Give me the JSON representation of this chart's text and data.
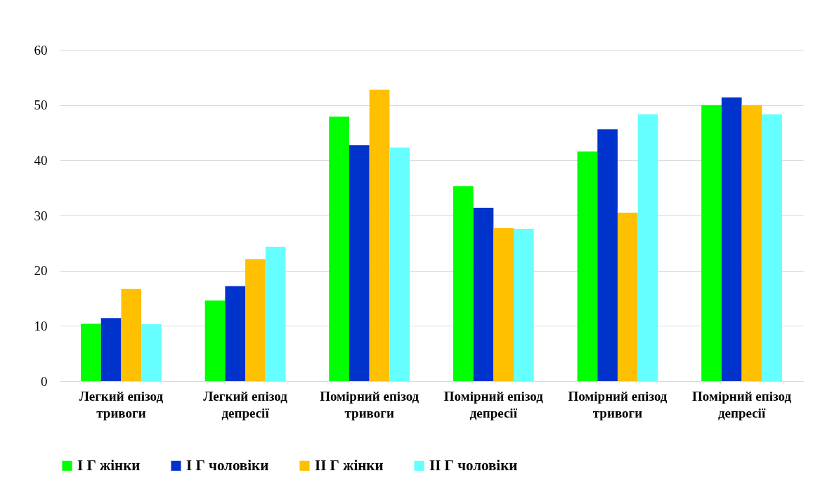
{
  "chart_data": {
    "type": "bar",
    "categories": [
      "Легкий епізод тривоги",
      "Легкий епізод депресії",
      "Помірний епізод тривоги",
      "Помірний епізод депресії",
      "Помірний епізод тривоги",
      "Помірний епізод депресії"
    ],
    "series": [
      {
        "name": "I Г жінки",
        "color": "#00ff00",
        "values": [
          10.4,
          14.6,
          47.9,
          35.3,
          41.6,
          50.0
        ]
      },
      {
        "name": "I Г чоловіки",
        "color": "#0033cc",
        "values": [
          11.4,
          17.2,
          42.7,
          31.4,
          45.6,
          51.4
        ]
      },
      {
        "name": "II Г жінки",
        "color": "#ffc000",
        "values": [
          16.7,
          22.1,
          52.8,
          27.7,
          30.5,
          50.0
        ]
      },
      {
        "name": "II Г чоловіки",
        "color": "#66ffff",
        "values": [
          10.3,
          24.3,
          42.3,
          27.6,
          48.3,
          48.3
        ]
      }
    ],
    "ylim": [
      0,
      60
    ],
    "yticks": [
      0,
      10,
      20,
      30,
      40,
      50,
      60
    ],
    "grid": "y",
    "legend": "bottom"
  }
}
